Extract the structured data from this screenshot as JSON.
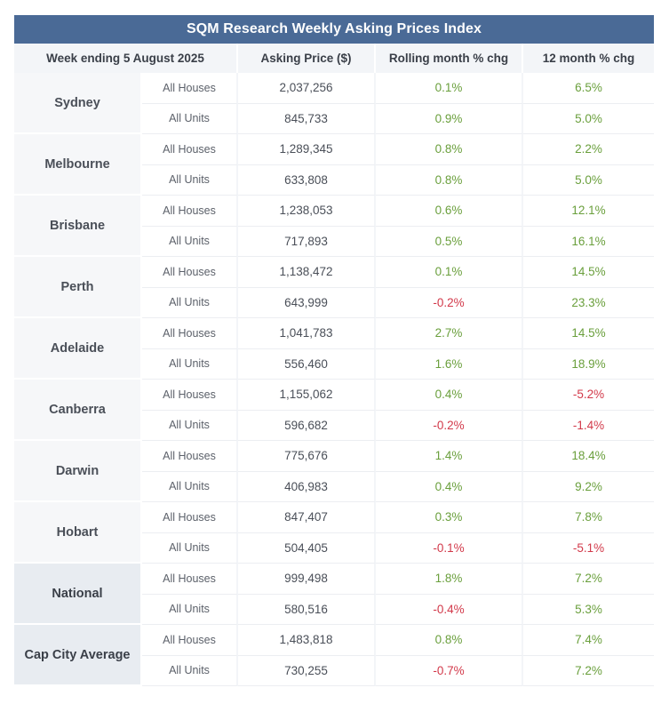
{
  "title": "SQM Research Weekly Asking Prices Index",
  "headers": {
    "week": "Week ending 5 August 2025",
    "price": "Asking Price ($)",
    "rolling": "Rolling month % chg",
    "annual": "12 month % chg"
  },
  "colors": {
    "header_bg": "#4a6a96",
    "positive": "#6a9f3c",
    "negative": "#d2394a"
  },
  "cities": [
    {
      "name": "Sydney",
      "rows": [
        {
          "type": "All Houses",
          "price": "2,037,256",
          "rolling": "0.1%",
          "annual": "6.5%"
        },
        {
          "type": "All Units",
          "price": "845,733",
          "rolling": "0.9%",
          "annual": "5.0%"
        }
      ]
    },
    {
      "name": "Melbourne",
      "rows": [
        {
          "type": "All Houses",
          "price": "1,289,345",
          "rolling": "0.8%",
          "annual": "2.2%"
        },
        {
          "type": "All Units",
          "price": "633,808",
          "rolling": "0.8%",
          "annual": "5.0%"
        }
      ]
    },
    {
      "name": "Brisbane",
      "rows": [
        {
          "type": "All Houses",
          "price": "1,238,053",
          "rolling": "0.6%",
          "annual": "12.1%"
        },
        {
          "type": "All Units",
          "price": "717,893",
          "rolling": "0.5%",
          "annual": "16.1%"
        }
      ]
    },
    {
      "name": "Perth",
      "rows": [
        {
          "type": "All Houses",
          "price": "1,138,472",
          "rolling": "0.1%",
          "annual": "14.5%"
        },
        {
          "type": "All Units",
          "price": "643,999",
          "rolling": "-0.2%",
          "annual": "23.3%"
        }
      ]
    },
    {
      "name": "Adelaide",
      "rows": [
        {
          "type": "All Houses",
          "price": "1,041,783",
          "rolling": "2.7%",
          "annual": "14.5%"
        },
        {
          "type": "All Units",
          "price": "556,460",
          "rolling": "1.6%",
          "annual": "18.9%"
        }
      ]
    },
    {
      "name": "Canberra",
      "rows": [
        {
          "type": "All Houses",
          "price": "1,155,062",
          "rolling": "0.4%",
          "annual": "-5.2%"
        },
        {
          "type": "All Units",
          "price": "596,682",
          "rolling": "-0.2%",
          "annual": "-1.4%"
        }
      ]
    },
    {
      "name": "Darwin",
      "rows": [
        {
          "type": "All Houses",
          "price": "775,676",
          "rolling": "1.4%",
          "annual": "18.4%"
        },
        {
          "type": "All Units",
          "price": "406,983",
          "rolling": "0.4%",
          "annual": "9.2%"
        }
      ]
    },
    {
      "name": "Hobart",
      "rows": [
        {
          "type": "All Houses",
          "price": "847,407",
          "rolling": "0.3%",
          "annual": "7.8%"
        },
        {
          "type": "All Units",
          "price": "504,405",
          "rolling": "-0.1%",
          "annual": "-5.1%"
        }
      ]
    },
    {
      "name": "National",
      "summary": true,
      "rows": [
        {
          "type": "All Houses",
          "price": "999,498",
          "rolling": "1.8%",
          "annual": "7.2%"
        },
        {
          "type": "All Units",
          "price": "580,516",
          "rolling": "-0.4%",
          "annual": "5.3%"
        }
      ]
    },
    {
      "name": "Cap City Average",
      "summary": true,
      "rows": [
        {
          "type": "All Houses",
          "price": "1,483,818",
          "rolling": "0.8%",
          "annual": "7.4%"
        },
        {
          "type": "All Units",
          "price": "730,255",
          "rolling": "-0.7%",
          "annual": "7.2%"
        }
      ]
    }
  ]
}
